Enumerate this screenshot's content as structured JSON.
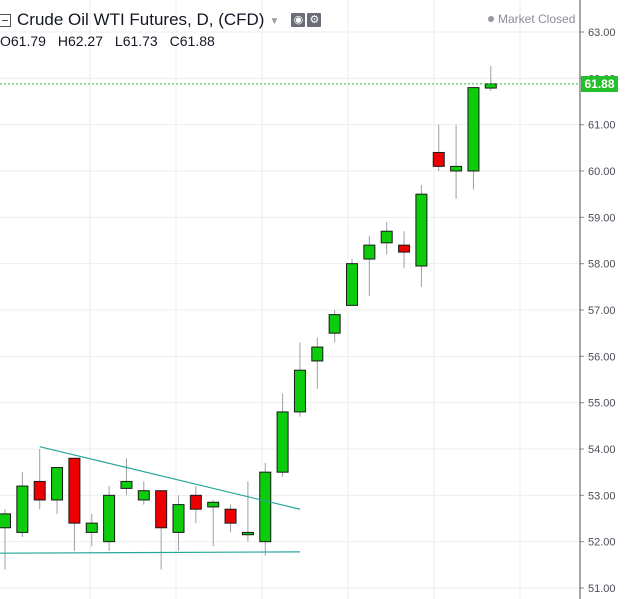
{
  "header": {
    "title": "Crude Oil WTI Futures, D, (CFD)",
    "status": "Market Closed",
    "ohlc": {
      "o_label": "O",
      "o": "61.79",
      "h_label": "H",
      "h": "62.27",
      "l_label": "L",
      "l": "61.73",
      "c_label": "C",
      "c": "61.88"
    },
    "icons": [
      "eye-icon",
      "gear-icon"
    ]
  },
  "last_price": {
    "value": 61.88,
    "label": "61.88",
    "color": "#22c02a"
  },
  "colors": {
    "up": "#0ccc0c",
    "down": "#ee0000",
    "wick": "#9aa0a6",
    "trendline": "#26a69a",
    "price_line": "#22c02a",
    "grid": "#eceef2"
  },
  "chart_data": {
    "type": "candlestick",
    "title": "Crude Oil WTI Futures, D, (CFD)",
    "ylim": [
      50.8,
      63.4
    ],
    "y_ticks": [
      "51.00",
      "52.00",
      "53.00",
      "54.00",
      "55.00",
      "56.00",
      "57.00",
      "58.00",
      "59.00",
      "60.00",
      "61.00",
      "62.00",
      "63.00"
    ],
    "grid": true,
    "series": [
      {
        "name": "",
        "values": [
          {
            "o": 52.3,
            "h": 52.7,
            "l": 51.4,
            "c": 52.6
          },
          {
            "o": 52.2,
            "h": 53.5,
            "l": 52.1,
            "c": 53.2
          },
          {
            "o": 53.3,
            "h": 54.0,
            "l": 52.7,
            "c": 52.9
          },
          {
            "o": 52.9,
            "h": 53.6,
            "l": 52.6,
            "c": 53.6
          },
          {
            "o": 53.8,
            "h": 53.8,
            "l": 51.8,
            "c": 52.4
          },
          {
            "o": 52.2,
            "h": 52.6,
            "l": 51.9,
            "c": 52.4
          },
          {
            "o": 52.0,
            "h": 53.2,
            "l": 51.8,
            "c": 53.0
          },
          {
            "o": 53.15,
            "h": 53.8,
            "l": 53.0,
            "c": 53.3
          },
          {
            "o": 52.9,
            "h": 53.3,
            "l": 52.8,
            "c": 53.1
          },
          {
            "o": 53.1,
            "h": 53.1,
            "l": 51.4,
            "c": 52.3
          },
          {
            "o": 52.2,
            "h": 53.0,
            "l": 51.8,
            "c": 52.8
          },
          {
            "o": 53.0,
            "h": 53.2,
            "l": 52.4,
            "c": 52.7
          },
          {
            "o": 52.75,
            "h": 52.9,
            "l": 51.9,
            "c": 52.85
          },
          {
            "o": 52.7,
            "h": 52.8,
            "l": 52.2,
            "c": 52.4
          },
          {
            "o": 52.15,
            "h": 53.3,
            "l": 52.0,
            "c": 52.2
          },
          {
            "o": 52.0,
            "h": 53.7,
            "l": 51.7,
            "c": 53.5
          },
          {
            "o": 53.5,
            "h": 55.2,
            "l": 53.4,
            "c": 54.8
          },
          {
            "o": 54.8,
            "h": 56.3,
            "l": 54.7,
            "c": 55.7
          },
          {
            "o": 55.9,
            "h": 56.4,
            "l": 55.3,
            "c": 56.2
          },
          {
            "o": 56.5,
            "h": 57.0,
            "l": 56.3,
            "c": 56.9
          },
          {
            "o": 57.1,
            "h": 58.1,
            "l": 57.1,
            "c": 58.0
          },
          {
            "o": 58.1,
            "h": 58.6,
            "l": 57.3,
            "c": 58.4
          },
          {
            "o": 58.45,
            "h": 58.9,
            "l": 58.2,
            "c": 58.7
          },
          {
            "o": 58.4,
            "h": 58.7,
            "l": 57.9,
            "c": 58.25
          },
          {
            "o": 57.95,
            "h": 59.7,
            "l": 57.5,
            "c": 59.5
          },
          {
            "o": 60.4,
            "h": 61.0,
            "l": 60.0,
            "c": 60.1
          },
          {
            "o": 60.0,
            "h": 61.0,
            "l": 59.4,
            "c": 60.1
          },
          {
            "o": 60.0,
            "h": 61.8,
            "l": 59.6,
            "c": 61.8
          },
          {
            "o": 61.79,
            "h": 62.27,
            "l": 61.73,
            "c": 61.88
          }
        ]
      }
    ],
    "trendlines": [
      {
        "from": {
          "index": 2,
          "price": 54.05
        },
        "to": {
          "index": 17,
          "price": 52.7
        }
      },
      {
        "from": {
          "index": -1,
          "price": 51.75
        },
        "to": {
          "index": 17,
          "price": 51.78
        }
      }
    ]
  }
}
